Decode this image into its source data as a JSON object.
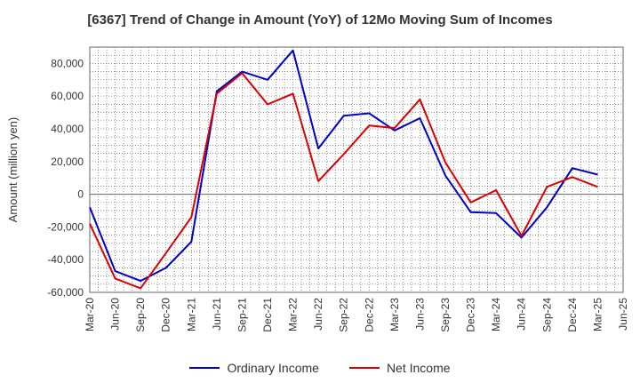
{
  "chart_data": {
    "type": "line",
    "title": "[6367]  Trend of Change in Amount (YoY) of 12Mo Moving Sum of Incomes",
    "xlabel": "",
    "ylabel": "Amount (million yen)",
    "ylim": [
      -60000,
      90000
    ],
    "yticks": [
      -60000,
      -40000,
      -20000,
      0,
      20000,
      40000,
      60000,
      80000
    ],
    "ytick_labels": [
      "-60,000",
      "-40,000",
      "-20,000",
      "0",
      "20,000",
      "40,000",
      "60,000",
      "80,000"
    ],
    "categories": [
      "Mar-20",
      "Jun-20",
      "Sep-20",
      "Dec-20",
      "Mar-21",
      "Jun-21",
      "Sep-21",
      "Dec-21",
      "Mar-22",
      "Jun-22",
      "Sep-22",
      "Dec-22",
      "Mar-23",
      "Jun-23",
      "Sep-23",
      "Dec-23",
      "Mar-24",
      "Jun-24",
      "Sep-24",
      "Dec-24",
      "Mar-25",
      "Jun-25"
    ],
    "grid": true,
    "legend_position": "bottom",
    "series": [
      {
        "name": "Ordinary Income",
        "color": "#0000cc",
        "values": [
          -8000,
          -47000,
          -53000,
          -45000,
          -29000,
          63000,
          75000,
          70000,
          88000,
          28000,
          48000,
          49500,
          39000,
          46500,
          11500,
          -11000,
          -11500,
          -26500,
          -8000,
          16000,
          12000,
          null
        ]
      },
      {
        "name": "Net Income",
        "color": "#dd0000",
        "values": [
          -18000,
          -51500,
          -57500,
          -36000,
          -14000,
          61500,
          74000,
          55000,
          61500,
          8000,
          24500,
          42000,
          40500,
          58000,
          19500,
          -5000,
          2500,
          -25500,
          4500,
          10500,
          4500,
          null
        ]
      }
    ]
  }
}
